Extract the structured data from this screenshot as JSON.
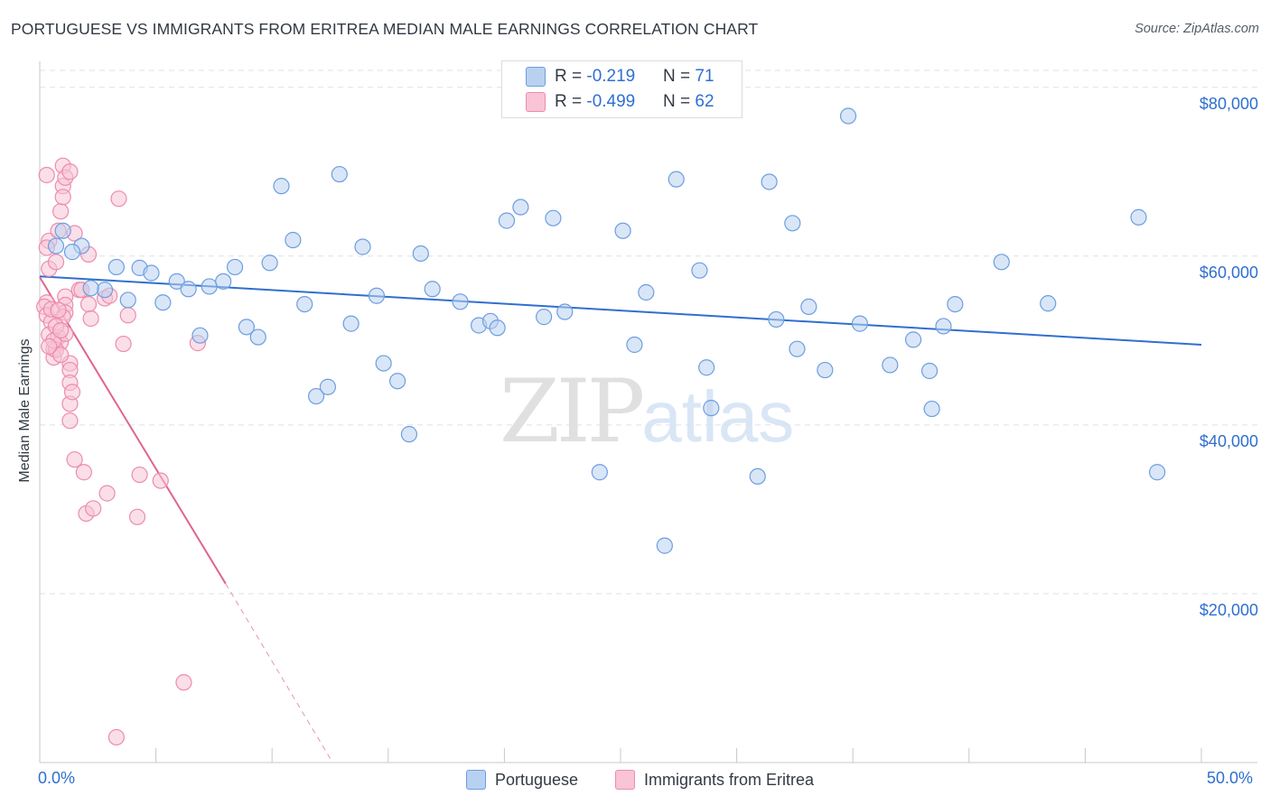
{
  "title": "PORTUGUESE VS IMMIGRANTS FROM ERITREA MEDIAN MALE EARNINGS CORRELATION CHART",
  "source": "Source: ZipAtlas.com",
  "watermark": {
    "zip": "ZIP",
    "atlas": "atlas"
  },
  "legend_top": {
    "rows": [
      {
        "r_label": "R = ",
        "r_value": "-0.219",
        "n_label": "N = ",
        "n_value": "71"
      },
      {
        "r_label": "R = ",
        "r_value": "-0.499",
        "n_label": "N = ",
        "n_value": "62"
      }
    ]
  },
  "legend_bottom": [
    "Portuguese",
    "Immigrants from Eritrea"
  ],
  "colors": {
    "blue_fill": "#b9d1f1",
    "blue_stroke": "#6d9ee0",
    "blue_line": "#2f6fd0",
    "pink_fill": "#f8c4d6",
    "pink_stroke": "#ec8cae",
    "pink_line": "#e0648f",
    "grid": "#dde1e6",
    "axis_label": "#2f6fd0"
  },
  "chart_data": {
    "type": "scatter",
    "title": "PORTUGUESE VS IMMIGRANTS FROM ERITREA MEDIAN MALE EARNINGS CORRELATION CHART",
    "xlabel": "",
    "ylabel": "Median Male Earnings",
    "xlim": [
      0,
      50
    ],
    "ylim": [
      0,
      82000
    ],
    "x_tick_labels": [
      "0.0%",
      "50.0%"
    ],
    "y_ticks": [
      20000,
      40000,
      60000,
      80000
    ],
    "y_tick_labels": [
      "$20,000",
      "$40,000",
      "$60,000",
      "$80,000"
    ],
    "grid": true,
    "legend_position": "top-center",
    "series": [
      {
        "name": "Portuguese",
        "r": -0.219,
        "n": 71,
        "trend": {
          "x0": 0.0,
          "y0": 57600,
          "x1": 50.0,
          "y1": 49500,
          "dashed_from": null
        },
        "points": [
          [
            0.7,
            61200
          ],
          [
            1.0,
            63000
          ],
          [
            1.8,
            61200
          ],
          [
            3.3,
            58700
          ],
          [
            2.8,
            56000
          ],
          [
            3.8,
            54800
          ],
          [
            4.3,
            58600
          ],
          [
            4.8,
            58000
          ],
          [
            5.3,
            54500
          ],
          [
            5.9,
            57000
          ],
          [
            6.4,
            56100
          ],
          [
            6.9,
            50600
          ],
          [
            7.3,
            56400
          ],
          [
            7.9,
            57000
          ],
          [
            8.4,
            58700
          ],
          [
            8.9,
            51600
          ],
          [
            9.4,
            50400
          ],
          [
            9.9,
            59200
          ],
          [
            10.4,
            68300
          ],
          [
            10.9,
            61900
          ],
          [
            11.4,
            54300
          ],
          [
            11.9,
            43400
          ],
          [
            12.4,
            44500
          ],
          [
            12.9,
            69700
          ],
          [
            13.4,
            52000
          ],
          [
            13.9,
            61100
          ],
          [
            14.5,
            55300
          ],
          [
            14.8,
            47300
          ],
          [
            15.4,
            45200
          ],
          [
            15.9,
            38900
          ],
          [
            16.4,
            60300
          ],
          [
            16.9,
            56100
          ],
          [
            18.1,
            54600
          ],
          [
            18.9,
            51800
          ],
          [
            19.4,
            52300
          ],
          [
            19.7,
            51500
          ],
          [
            20.1,
            64200
          ],
          [
            20.7,
            65800
          ],
          [
            21.7,
            52800
          ],
          [
            22.1,
            64500
          ],
          [
            22.6,
            53400
          ],
          [
            24.1,
            34400
          ],
          [
            25.1,
            63000
          ],
          [
            25.6,
            49500
          ],
          [
            26.1,
            55700
          ],
          [
            26.9,
            25700
          ],
          [
            27.4,
            69100
          ],
          [
            28.4,
            58300
          ],
          [
            28.7,
            46800
          ],
          [
            28.9,
            42000
          ],
          [
            30.9,
            33900
          ],
          [
            31.4,
            68800
          ],
          [
            31.7,
            52500
          ],
          [
            32.4,
            63900
          ],
          [
            32.6,
            49000
          ],
          [
            33.1,
            54000
          ],
          [
            33.8,
            46500
          ],
          [
            34.8,
            76600
          ],
          [
            35.3,
            52000
          ],
          [
            36.6,
            47100
          ],
          [
            37.6,
            50100
          ],
          [
            38.3,
            46400
          ],
          [
            38.4,
            41900
          ],
          [
            38.9,
            51700
          ],
          [
            39.4,
            54300
          ],
          [
            41.4,
            59300
          ],
          [
            43.4,
            54400
          ],
          [
            47.3,
            64600
          ],
          [
            48.1,
            34400
          ],
          [
            2.2,
            56200
          ],
          [
            1.4,
            60500
          ]
        ]
      },
      {
        "name": "Immigrants from Eritrea",
        "r": -0.499,
        "n": 62,
        "trend": {
          "x0": 0.0,
          "y0": 57500,
          "x1": 8.0,
          "y1": 21200,
          "dashed_to_x": 12.5,
          "dashed_to_y": 500
        },
        "points": [
          [
            0.3,
            69600
          ],
          [
            0.4,
            61800
          ],
          [
            0.3,
            61000
          ],
          [
            0.4,
            58500
          ],
          [
            0.3,
            54500
          ],
          [
            0.2,
            54000
          ],
          [
            0.3,
            53000
          ],
          [
            0.5,
            52200
          ],
          [
            0.4,
            50700
          ],
          [
            0.6,
            49000
          ],
          [
            0.6,
            48000
          ],
          [
            0.7,
            59300
          ],
          [
            0.8,
            63000
          ],
          [
            0.9,
            65300
          ],
          [
            1.0,
            70700
          ],
          [
            1.0,
            68300
          ],
          [
            1.0,
            67000
          ],
          [
            1.1,
            69300
          ],
          [
            1.3,
            70000
          ],
          [
            1.5,
            62700
          ],
          [
            1.1,
            55200
          ],
          [
            1.1,
            54200
          ],
          [
            1.1,
            53300
          ],
          [
            1.0,
            52800
          ],
          [
            0.8,
            50400
          ],
          [
            0.9,
            49800
          ],
          [
            0.7,
            48900
          ],
          [
            1.3,
            47300
          ],
          [
            1.3,
            46500
          ],
          [
            1.3,
            45000
          ],
          [
            1.3,
            42500
          ],
          [
            1.3,
            40500
          ],
          [
            1.4,
            43900
          ],
          [
            1.5,
            35900
          ],
          [
            1.9,
            34400
          ],
          [
            2.0,
            29500
          ],
          [
            2.3,
            30100
          ],
          [
            2.1,
            60200
          ],
          [
            1.7,
            56000
          ],
          [
            2.1,
            54300
          ],
          [
            2.2,
            52600
          ],
          [
            2.8,
            55000
          ],
          [
            3.0,
            55300
          ],
          [
            2.9,
            31900
          ],
          [
            3.4,
            66800
          ],
          [
            3.8,
            53000
          ],
          [
            3.6,
            49600
          ],
          [
            4.3,
            34100
          ],
          [
            4.2,
            29100
          ],
          [
            5.2,
            33400
          ],
          [
            6.2,
            9500
          ],
          [
            6.8,
            49700
          ],
          [
            3.3,
            3000
          ],
          [
            0.9,
            48300
          ],
          [
            0.6,
            50000
          ],
          [
            1.1,
            50800
          ],
          [
            0.4,
            49300
          ],
          [
            0.7,
            51700
          ],
          [
            0.5,
            53700
          ],
          [
            0.8,
            53600
          ],
          [
            1.8,
            56000
          ],
          [
            0.9,
            51200
          ]
        ]
      }
    ]
  }
}
